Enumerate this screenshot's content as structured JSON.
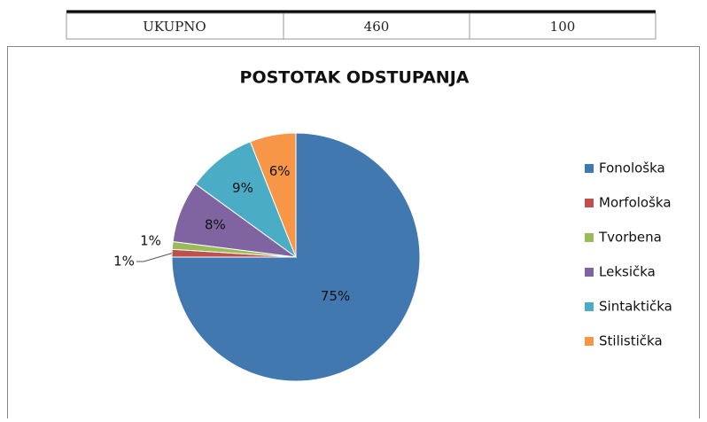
{
  "table": {
    "rows": [
      [
        "UKUPNO",
        "460",
        "100"
      ]
    ]
  },
  "chart_data": {
    "type": "pie",
    "title": "POSTOTAK ODSTUPANJA",
    "categories": [
      "Fonološka",
      "Morfološka",
      "Tvorbena",
      "Leksička",
      "Sintaktička",
      "Stilistička"
    ],
    "values": [
      75,
      1,
      1,
      8,
      9,
      6
    ],
    "value_labels": [
      "75%",
      "1%",
      "1%",
      "8%",
      "9%",
      "6%"
    ],
    "colors": [
      "#4178b0",
      "#c0504d",
      "#9bbb59",
      "#8064a2",
      "#4bacc6",
      "#f79646"
    ],
    "legend": "right"
  }
}
